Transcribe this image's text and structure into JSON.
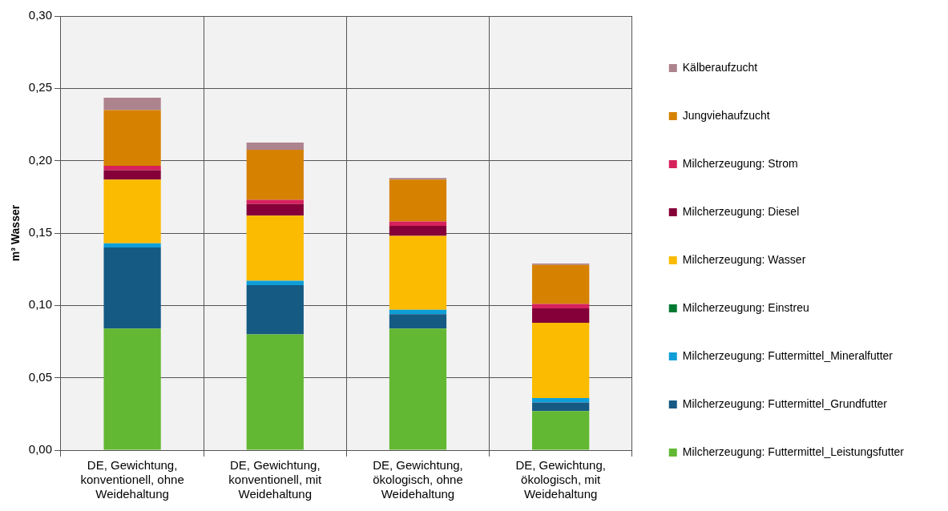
{
  "chart_data": {
    "type": "bar",
    "stacked": true,
    "ylabel": "m³ Wasser",
    "categories": [
      "DE, Gewichtung, konventionell, ohne Weidehaltung",
      "DE, Gewichtung, konventionell, mit Weidehaltung",
      "DE, Gewichtung, ökologisch, ohne Weidehaltung",
      "DE, Gewichtung, ökologisch, mit Weidehaltung"
    ],
    "series": [
      {
        "name": "Milcherzeugung: Futtermittel_Leistungsfutter",
        "color": "#62b832",
        "values": [
          0.084,
          0.08,
          0.084,
          0.027
        ]
      },
      {
        "name": "Milcherzeugung: Futtermittel_Grundfutter",
        "color": "#155a83",
        "values": [
          0.056,
          0.034,
          0.01,
          0.006
        ]
      },
      {
        "name": "Milcherzeugung: Futtermittel_Mineralfutter",
        "color": "#0d9ed8",
        "values": [
          0.003,
          0.003,
          0.003,
          0.003
        ]
      },
      {
        "name": "Milcherzeugung: Einstreu",
        "color": "#007a31",
        "values": [
          0,
          0,
          0,
          0
        ]
      },
      {
        "name": "Milcherzeugung: Wasser",
        "color": "#fbbb00",
        "values": [
          0.044,
          0.045,
          0.051,
          0.052
        ]
      },
      {
        "name": "Milcherzeugung: Diesel",
        "color": "#850038",
        "values": [
          0.0065,
          0.008,
          0.007,
          0.01
        ]
      },
      {
        "name": "Milcherzeugung: Strom",
        "color": "#d6215c",
        "values": [
          0.003,
          0.003,
          0.003,
          0.003
        ]
      },
      {
        "name": "Jungviehaufzucht",
        "color": "#d68100",
        "values": [
          0.0385,
          0.0345,
          0.029,
          0.027
        ]
      },
      {
        "name": "Kälberaufzucht",
        "color": "#ad838e",
        "values": [
          0.0085,
          0.005,
          0.001,
          0.001
        ]
      }
    ],
    "ylim": [
      0,
      0.3
    ],
    "yticks": [
      {
        "value": 0,
        "label": "0,00"
      },
      {
        "value": 0.05,
        "label": "0,05"
      },
      {
        "value": 0.1,
        "label": "0,10"
      },
      {
        "value": 0.15,
        "label": "0,15"
      },
      {
        "value": 0.2,
        "label": "0,20"
      },
      {
        "value": 0.25,
        "label": "0,25"
      },
      {
        "value": 0.3,
        "label": "0,30"
      }
    ],
    "grid": true,
    "legend": "right"
  }
}
